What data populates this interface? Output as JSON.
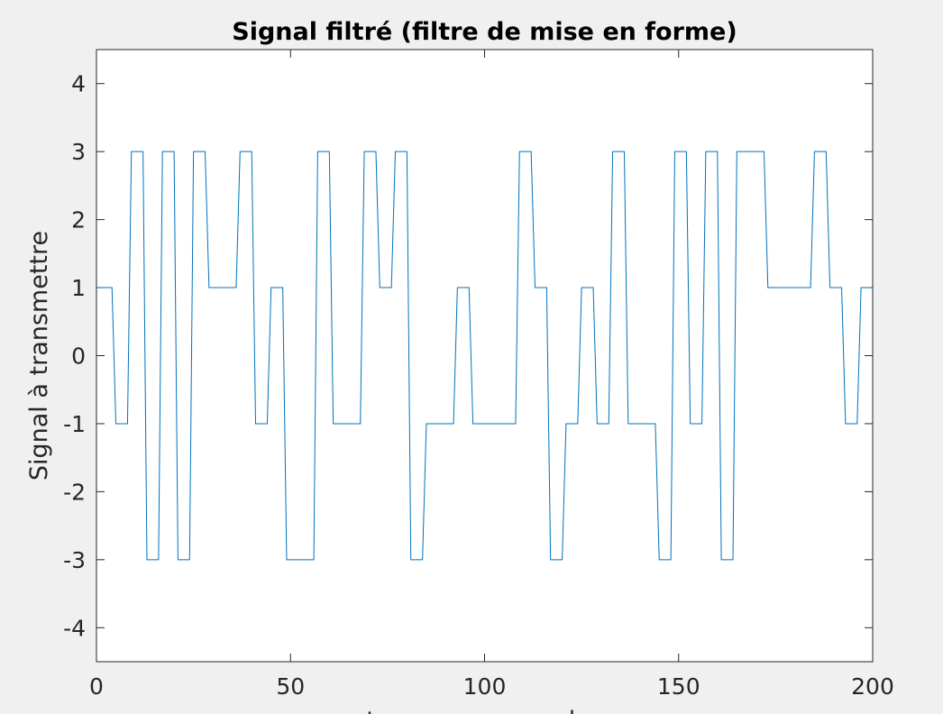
{
  "chart_data": {
    "type": "line",
    "title": "Signal filtré (filtre de mise en forme)",
    "xlabel": "temps en secondes",
    "ylabel": "Signal à transmettre",
    "xlim": [
      0,
      200
    ],
    "ylim": [
      -4.5,
      4.5
    ],
    "xticks": [
      0,
      50,
      100,
      150,
      200
    ],
    "yticks": [
      -4,
      -3,
      -2,
      -1,
      0,
      1,
      2,
      3,
      4
    ],
    "grid": false,
    "series": [
      {
        "color": "#0072BD",
        "x": [
          0,
          4,
          5,
          8,
          9,
          12,
          13,
          16,
          17,
          20,
          21,
          24,
          25,
          28,
          29,
          36,
          37,
          40,
          41,
          44,
          45,
          48,
          49,
          56,
          57,
          60,
          61,
          68,
          69,
          72,
          73,
          76,
          77,
          80,
          81,
          84,
          85,
          92,
          93,
          96,
          97,
          108,
          109,
          112,
          113,
          116,
          117,
          120,
          121,
          124,
          125,
          128,
          129,
          132,
          133,
          136,
          137,
          144,
          145,
          148,
          149,
          152,
          153,
          156,
          157,
          160,
          161,
          164,
          165,
          172,
          173,
          184,
          185,
          188,
          189,
          192,
          193,
          196,
          197,
          200
        ],
        "y": [
          1,
          1,
          -1,
          -1,
          3,
          3,
          -3,
          -3,
          3,
          3,
          -3,
          -3,
          3,
          3,
          1,
          1,
          3,
          3,
          -1,
          -1,
          1,
          1,
          -3,
          -3,
          3,
          3,
          -1,
          -1,
          3,
          3,
          1,
          1,
          3,
          3,
          -3,
          -3,
          -1,
          -1,
          1,
          1,
          -1,
          -1,
          3,
          3,
          1,
          1,
          -3,
          -3,
          -1,
          -1,
          1,
          1,
          -1,
          -1,
          3,
          3,
          -1,
          -1,
          -3,
          -3,
          3,
          3,
          -1,
          -1,
          3,
          3,
          -3,
          -3,
          3,
          3,
          1,
          1,
          3,
          3,
          1,
          1,
          -1,
          -1,
          1,
          1
        ]
      }
    ]
  }
}
